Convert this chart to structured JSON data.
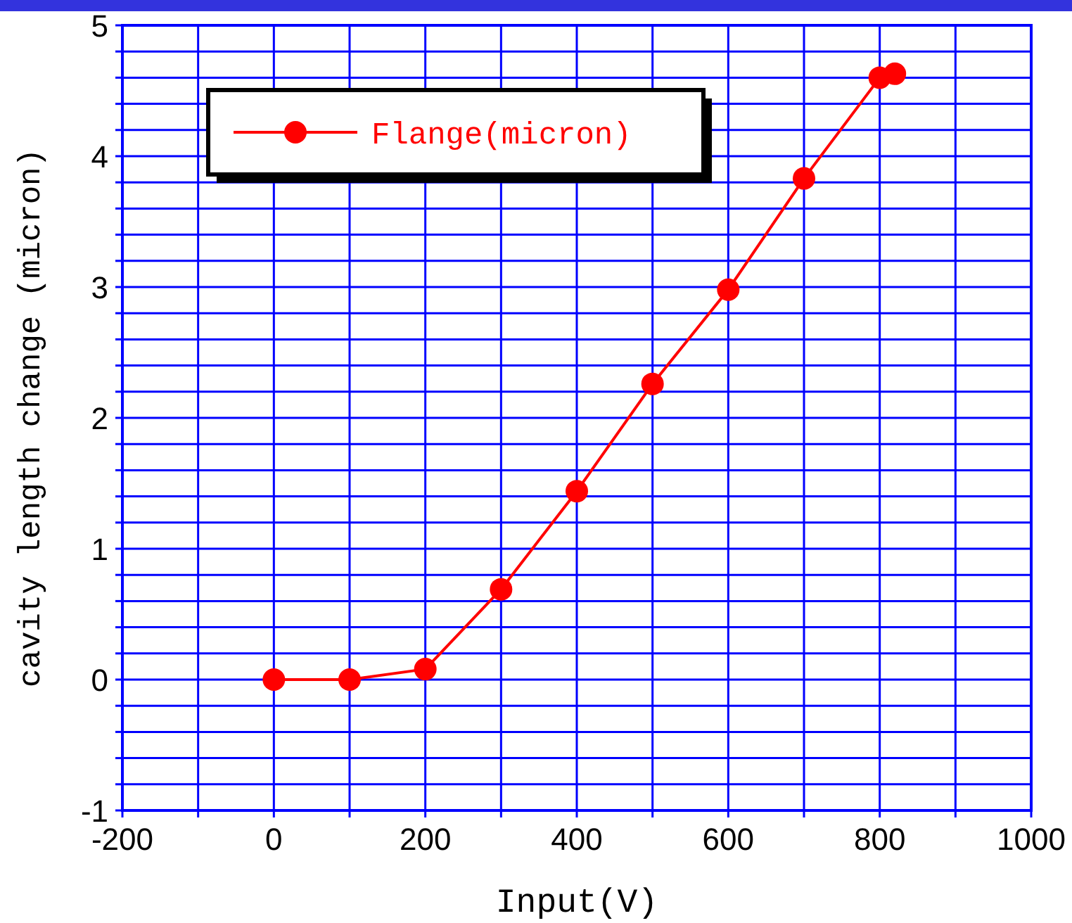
{
  "chart_data": {
    "type": "line",
    "xlabel": "Input(V)",
    "ylabel": "cavity length change (micron)",
    "x": [
      0,
      100,
      200,
      300,
      400,
      500,
      600,
      700,
      800,
      820
    ],
    "series": [
      {
        "name": "Flange(micron)",
        "color": "#ff0000",
        "values": [
          0,
          0,
          0.08,
          0.69,
          1.44,
          2.26,
          2.98,
          3.83,
          4.6,
          4.63
        ]
      }
    ],
    "xlim": [
      -200,
      1000
    ],
    "ylim": [
      -1,
      5
    ],
    "xticks": [
      -200,
      {
        "value": -100,
        "label": null
      },
      0,
      {
        "value": 100,
        "label": null
      },
      200,
      {
        "value": 300,
        "label": null
      },
      400,
      {
        "value": 500,
        "label": null
      },
      600,
      {
        "value": 700,
        "label": null
      },
      800,
      {
        "value": 900,
        "label": null
      },
      1000
    ],
    "yticks": [
      -1,
      {
        "value": -0.8,
        "label": null
      },
      {
        "value": -0.6,
        "label": null
      },
      {
        "value": -0.4,
        "label": null
      },
      {
        "value": -0.2,
        "label": null
      },
      0,
      {
        "value": 0.2,
        "label": null
      },
      {
        "value": 0.4,
        "label": null
      },
      {
        "value": 0.6,
        "label": null
      },
      {
        "value": 0.8,
        "label": null
      },
      1,
      {
        "value": 1.2,
        "label": null
      },
      {
        "value": 1.4,
        "label": null
      },
      {
        "value": 1.6,
        "label": null
      },
      {
        "value": 1.8,
        "label": null
      },
      2,
      {
        "value": 2.2,
        "label": null
      },
      {
        "value": 2.4,
        "label": null
      },
      {
        "value": 2.6,
        "label": null
      },
      {
        "value": 2.8,
        "label": null
      },
      3,
      {
        "value": 3.2,
        "label": null
      },
      {
        "value": 3.4,
        "label": null
      },
      {
        "value": 3.6,
        "label": null
      },
      {
        "value": 3.8,
        "label": null
      },
      4,
      {
        "value": 4.2,
        "label": null
      },
      {
        "value": 4.4,
        "label": null
      },
      {
        "value": 4.6,
        "label": null
      },
      {
        "value": 4.8,
        "label": null
      },
      5
    ],
    "grid": true,
    "legend": "top left",
    "marker": "circle",
    "line_style": "solid"
  }
}
